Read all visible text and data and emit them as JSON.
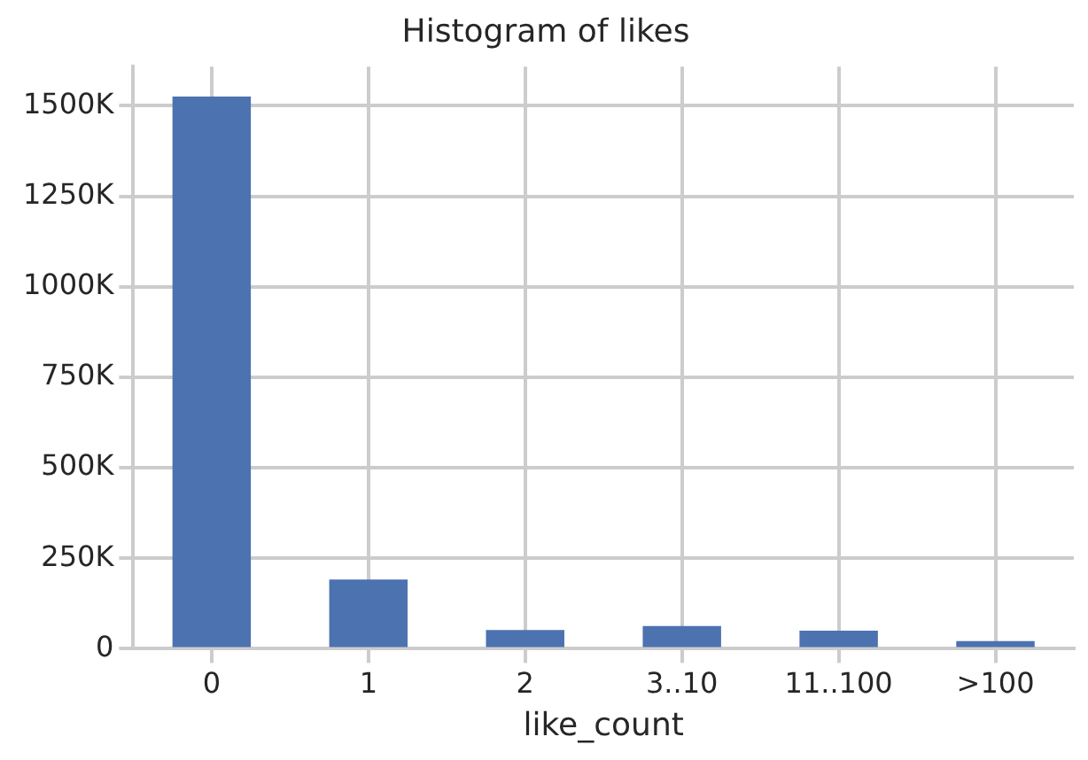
{
  "chart_data": {
    "type": "bar",
    "title": "Histogram of likes",
    "xlabel": "like_count",
    "categories": [
      "0",
      "1",
      "2",
      "3..10",
      "11..100",
      ">100"
    ],
    "values": [
      1525000,
      191000,
      52000,
      63000,
      50000,
      21000
    ],
    "color": "#4c72b0",
    "ylim": [
      0,
      1608000
    ],
    "yticks": [
      0,
      {
        "value": 250000,
        "label": "250K"
      },
      {
        "value": 500000,
        "label": "500K"
      },
      {
        "value": 750000,
        "label": "750K"
      },
      {
        "value": 1000000,
        "label": "1000K"
      },
      {
        "value": 1250000,
        "label": "1250K"
      },
      {
        "value": 1500000,
        "label": "1500K"
      }
    ],
    "grid": true,
    "legend": false
  }
}
